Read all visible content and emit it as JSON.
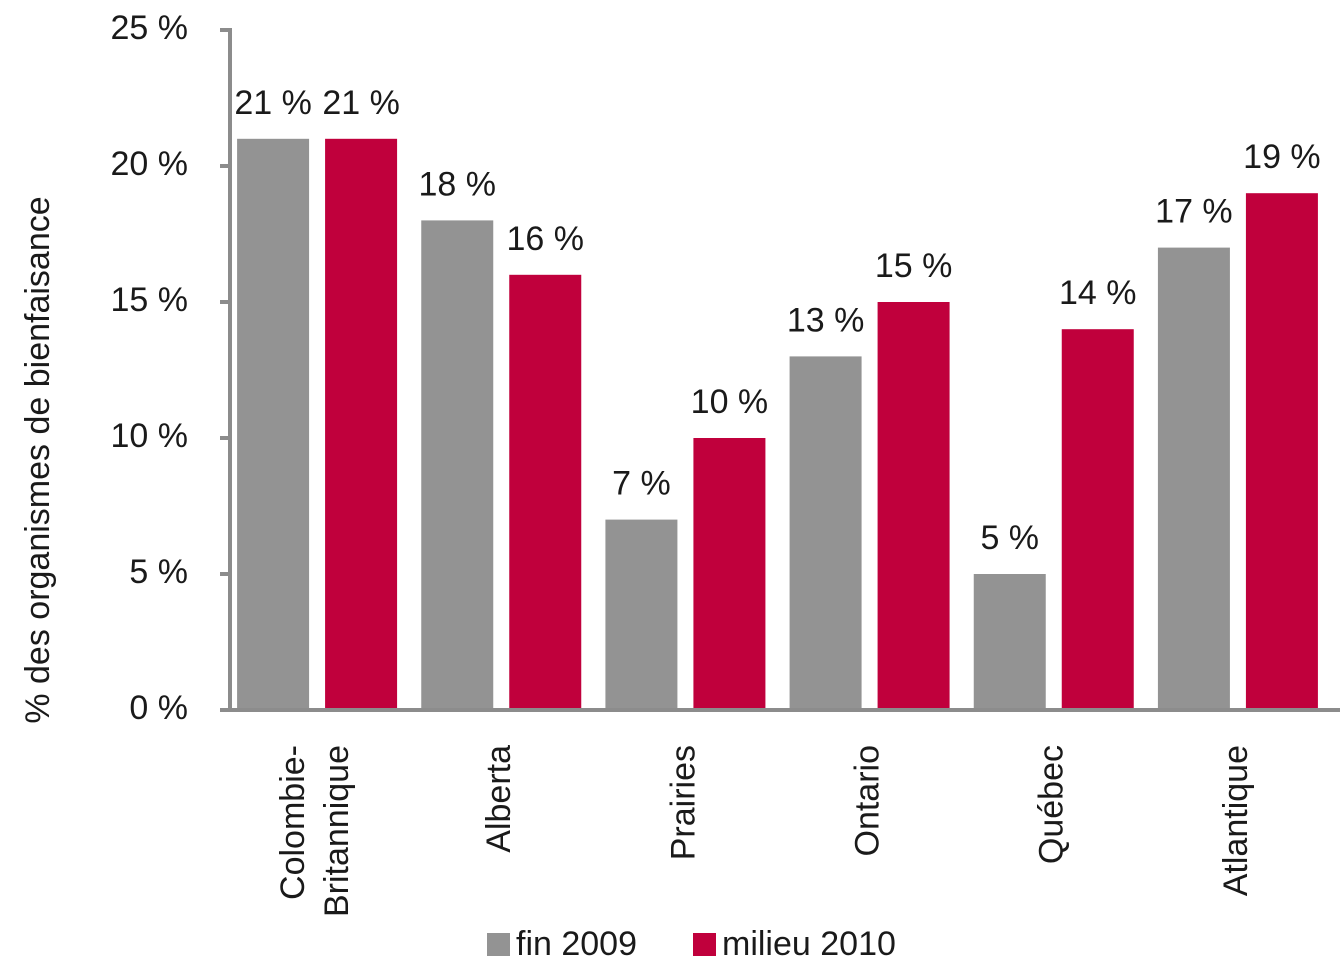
{
  "chart_data": {
    "type": "bar",
    "y_label": "% des organismes de bienfaisance",
    "categories": [
      "Colombie-Britannique",
      "Alberta",
      "Prairies",
      "Ontario",
      "Québec",
      "Atlantique"
    ],
    "series": [
      {
        "name": "fin 2009",
        "color": "#939393",
        "values": [
          21,
          18,
          7,
          13,
          5,
          17
        ],
        "value_labels": [
          "21 %",
          "18 %",
          "7 %",
          "13 %",
          "5 %",
          "17 %"
        ]
      },
      {
        "name": "milieu 2010",
        "color": "#c0003c",
        "values": [
          21,
          16,
          10,
          15,
          14,
          19
        ],
        "value_labels": [
          "21 %",
          "16 %",
          "10 %",
          "15 %",
          "14 %",
          "19 %"
        ]
      }
    ],
    "ylim": [
      0,
      25
    ],
    "yticks": [
      {
        "value": 0,
        "label": "0 %"
      },
      {
        "value": 5,
        "label": "5 %"
      },
      {
        "value": 10,
        "label": "10 %"
      },
      {
        "value": 15,
        "label": "15 %"
      },
      {
        "value": 20,
        "label": "20 %"
      },
      {
        "value": 25,
        "label": "25 %"
      }
    ],
    "legend": "bottom"
  }
}
